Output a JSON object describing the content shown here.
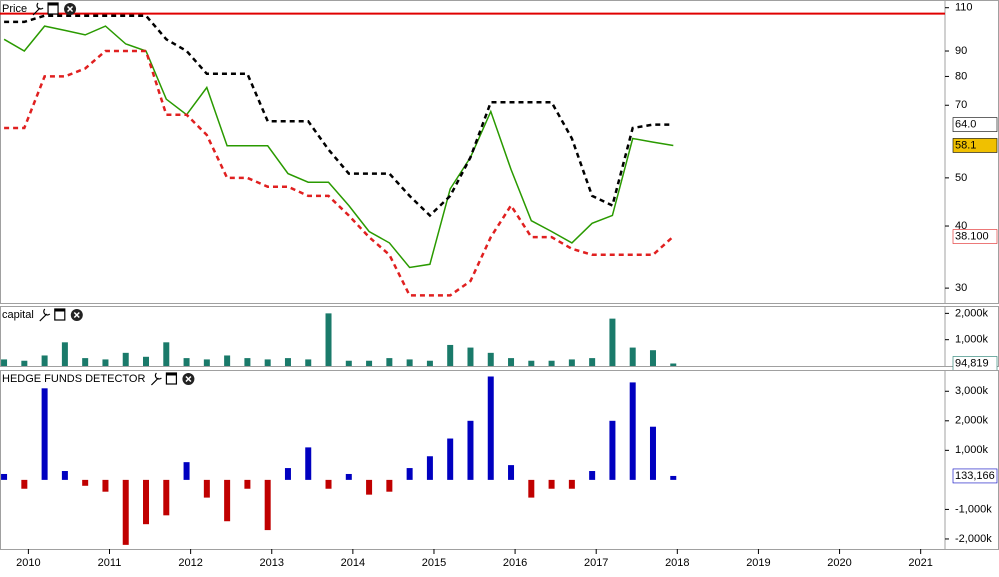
{
  "chart_data": [
    {
      "type": "line",
      "title": "Price",
      "log": true,
      "ylim": [
        28,
        114
      ],
      "yticks": [
        30,
        40,
        50,
        70,
        80,
        90,
        110
      ],
      "xlim": [
        2009.65,
        2021.3
      ],
      "hline": 107,
      "hline_color": "#e00000",
      "x": [
        2009.7,
        2009.95,
        2010.2,
        2010.45,
        2010.7,
        2010.95,
        2011.2,
        2011.45,
        2011.7,
        2011.95,
        2012.2,
        2012.45,
        2012.7,
        2012.95,
        2013.2,
        2013.45,
        2013.7,
        2013.95,
        2014.2,
        2014.45,
        2014.7,
        2014.95,
        2015.2,
        2015.45,
        2015.7,
        2015.95,
        2016.2,
        2016.45,
        2016.7,
        2016.95,
        2017.2,
        2017.45,
        2017.7,
        2017.95
      ],
      "series": [
        {
          "name": "Price",
          "color": "#2a9a00",
          "dash": false,
          "last_label": "58.1",
          "label_bg": "#f0c000",
          "label_fg": "#000000",
          "values": [
            95,
            90,
            101,
            99,
            97,
            101,
            93,
            90,
            72,
            67,
            76,
            58,
            58,
            58,
            51,
            49,
            49,
            44,
            39,
            37,
            33,
            33.5,
            47.5,
            55,
            68,
            52,
            41,
            39,
            37,
            40.5,
            42,
            60,
            59,
            58.1
          ]
        },
        {
          "color": "#000000",
          "dash": true,
          "last_label": "64.0",
          "label_bg": "#ffffff",
          "label_fg": "#000000",
          "values": [
            103,
            103,
            106,
            106,
            106,
            106,
            106,
            106,
            95,
            90,
            81,
            81,
            81,
            65,
            65,
            65,
            57,
            51,
            51,
            51,
            46,
            42,
            46,
            55,
            71,
            71,
            71,
            71,
            60,
            46,
            44,
            63,
            64,
            64
          ]
        },
        {
          "color": "#e02020",
          "dash": true,
          "last_label": "38.100",
          "label_bg": "#ffffff",
          "label_fg": "#e02020",
          "values": [
            63,
            63,
            80,
            80,
            83,
            90,
            90,
            90,
            67,
            67,
            61,
            50,
            50,
            48,
            48,
            46,
            46,
            42,
            38,
            35,
            29,
            29,
            29,
            31,
            38,
            44,
            38,
            38,
            36,
            35,
            35,
            35,
            35,
            38.1
          ]
        }
      ]
    },
    {
      "type": "bar",
      "title": "capital",
      "ylim": [
        0,
        2280000
      ],
      "yticks": [
        {
          "value": 1000000,
          "label": "1,000k"
        },
        {
          "value": 2000000,
          "label": "2,000k"
        }
      ],
      "xlim": [
        2009.65,
        2021.3
      ],
      "x": [
        2009.7,
        2009.95,
        2010.2,
        2010.45,
        2010.7,
        2010.95,
        2011.2,
        2011.45,
        2011.7,
        2011.95,
        2012.2,
        2012.45,
        2012.7,
        2012.95,
        2013.2,
        2013.45,
        2013.7,
        2013.95,
        2014.2,
        2014.45,
        2014.7,
        2014.95,
        2015.2,
        2015.45,
        2015.7,
        2015.95,
        2016.2,
        2016.45,
        2016.7,
        2016.95,
        2017.2,
        2017.45,
        2017.7,
        2017.95
      ],
      "series": [
        {
          "color": "#1a7a6a",
          "neg_color": "#1a7a6a",
          "last_label": "94,819",
          "label_bg": "#ffffff",
          "label_fg": "#1a7a6a",
          "values": [
            250000,
            200000,
            400000,
            900000,
            300000,
            250000,
            500000,
            350000,
            900000,
            300000,
            250000,
            400000,
            300000,
            250000,
            300000,
            250000,
            2000000,
            200000,
            200000,
            300000,
            250000,
            200000,
            800000,
            700000,
            500000,
            300000,
            200000,
            200000,
            250000,
            300000,
            1800000,
            700000,
            600000,
            94819
          ]
        }
      ]
    },
    {
      "type": "bar",
      "title": "HEDGE FUNDS DETECTOR",
      "ylim": [
        -2340000,
        3720000
      ],
      "yticks": [
        {
          "value": -2000000,
          "label": "-2,000k"
        },
        {
          "value": -1000000,
          "label": "-1,000k"
        },
        {
          "value": 1000000,
          "label": "1,000k"
        },
        {
          "value": 2000000,
          "label": "2,000k"
        },
        {
          "value": 3000000,
          "label": "3,000k"
        }
      ],
      "xlim": [
        2009.65,
        2021.3
      ],
      "xticks": [
        2010,
        2011,
        2012,
        2013,
        2014,
        2015,
        2016,
        2017,
        2018,
        2019,
        2020,
        2021
      ],
      "x": [
        2009.7,
        2009.95,
        2010.2,
        2010.45,
        2010.7,
        2010.95,
        2011.2,
        2011.45,
        2011.7,
        2011.95,
        2012.2,
        2012.45,
        2012.7,
        2012.95,
        2013.2,
        2013.45,
        2013.7,
        2013.95,
        2014.2,
        2014.45,
        2014.7,
        2014.95,
        2015.2,
        2015.45,
        2015.7,
        2015.95,
        2016.2,
        2016.45,
        2016.7,
        2016.95,
        2017.2,
        2017.45,
        2017.7,
        2017.95
      ],
      "series": [
        {
          "color": "#0000c0",
          "neg_color": "#c00000",
          "last_label": "133,166",
          "label_bg": "#ffffff",
          "label_fg": "#0000c0",
          "values": [
            200000,
            -300000,
            3100000,
            300000,
            -200000,
            -400000,
            -2200000,
            -1500000,
            -1200000,
            600000,
            -600000,
            -1400000,
            -300000,
            -1700000,
            400000,
            1100000,
            -300000,
            200000,
            -500000,
            -400000,
            400000,
            800000,
            1400000,
            2000000,
            3500000,
            500000,
            -600000,
            -300000,
            -300000,
            300000,
            2000000,
            3300000,
            1800000,
            133166
          ]
        }
      ]
    }
  ]
}
